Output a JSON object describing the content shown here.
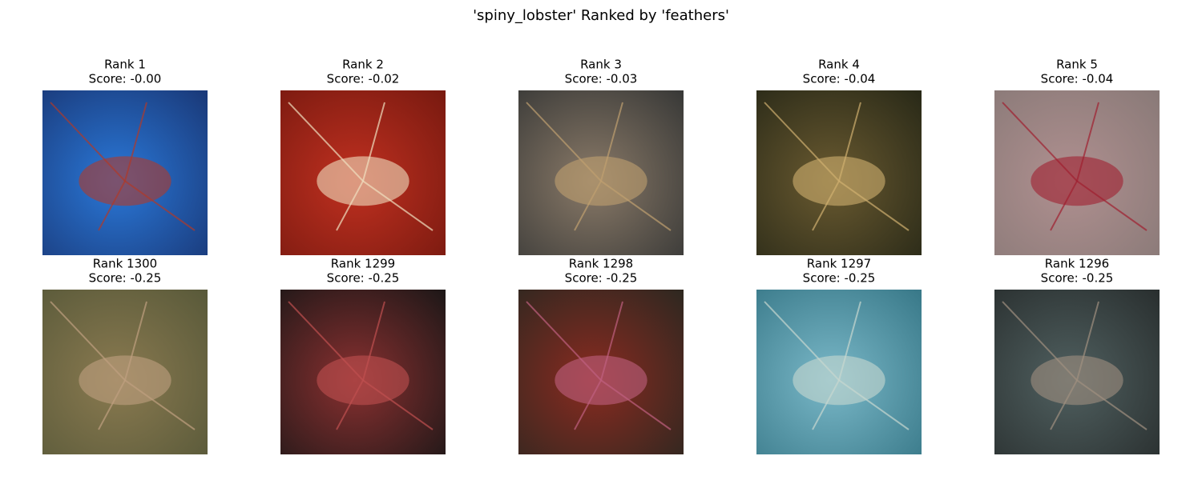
{
  "header": {
    "title": "'spiny_lobster' Ranked by 'feathers'"
  },
  "panels": [
    {
      "rank": "Rank 1",
      "score": "Score: -0.00"
    },
    {
      "rank": "Rank 2",
      "score": "Score: -0.02"
    },
    {
      "rank": "Rank 3",
      "score": "Score: -0.03"
    },
    {
      "rank": "Rank 4",
      "score": "Score: -0.04"
    },
    {
      "rank": "Rank 5",
      "score": "Score: -0.04"
    },
    {
      "rank": "Rank 1300",
      "score": "Score: -0.25"
    },
    {
      "rank": "Rank 1299",
      "score": "Score: -0.25"
    },
    {
      "rank": "Rank 1298",
      "score": "Score: -0.25"
    },
    {
      "rank": "Rank 1297",
      "score": "Score: -0.25"
    },
    {
      "rank": "Rank 1296",
      "score": "Score: -0.25"
    }
  ]
}
